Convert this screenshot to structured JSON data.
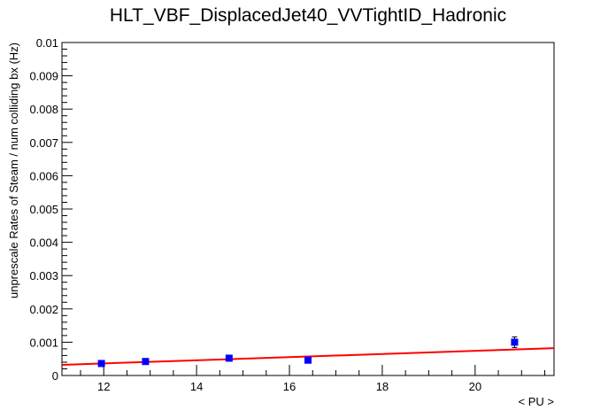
{
  "chart_data": {
    "type": "scatter",
    "title": "HLT_VBF_DisplacedJet40_VVTightID_Hadronic",
    "xlabel": "< PU >",
    "ylabel": "unprescale Rates of Steam / num colliding bx (Hz)",
    "xlim": [
      11.1,
      21.7
    ],
    "ylim": [
      0,
      0.01
    ],
    "x_ticks": [
      12,
      14,
      16,
      18,
      20
    ],
    "x_tick_labels": [
      "12",
      "14",
      "16",
      "18",
      "20"
    ],
    "y_ticks": [
      0,
      0.001,
      0.002,
      0.003,
      0.004,
      0.005,
      0.006,
      0.007,
      0.008,
      0.009,
      0.01
    ],
    "y_tick_labels": [
      "0",
      "0.001",
      "0.002",
      "0.003",
      "0.004",
      "0.005",
      "0.006",
      "0.007",
      "0.008",
      "0.009",
      "0.01"
    ],
    "points": [
      {
        "x": 11.95,
        "y": 0.00036,
        "yerr": 6e-05
      },
      {
        "x": 12.9,
        "y": 0.00042,
        "yerr": 5e-05
      },
      {
        "x": 14.7,
        "y": 0.00052,
        "yerr": 6e-05
      },
      {
        "x": 16.4,
        "y": 0.00046,
        "yerr": 5e-05
      },
      {
        "x": 20.85,
        "y": 0.001,
        "yerr": 0.00016
      }
    ],
    "fit": {
      "x": [
        11.1,
        21.7
      ],
      "y": [
        0.00032,
        0.00082
      ]
    },
    "colors": {
      "points": "#0000ff",
      "fit": "#ff0000",
      "axes": "#000000"
    },
    "grid": false,
    "legend": "none"
  }
}
